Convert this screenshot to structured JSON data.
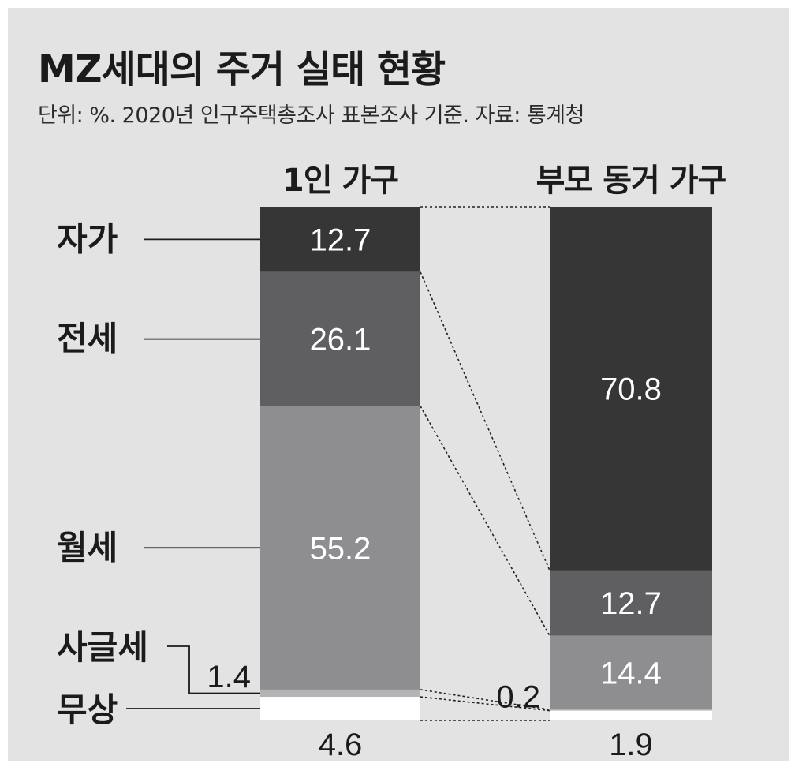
{
  "title": "MZ세대의 주거 실태 현황",
  "subtitle": "단위: %. 2020년 인구주택총조사 표본조사 기준. 자료: 통계청",
  "colors": {
    "panel": "#e3e3e3",
    "자가": "#363636",
    "전세": "#5f5f62",
    "월세": "#8e8e91",
    "사글세": "#b4b4b7",
    "무상": "#ffffff"
  },
  "chart_data": {
    "type": "bar",
    "stacked": true,
    "normalized": true,
    "categories": [
      "1인 가구",
      "부모 동거 가구"
    ],
    "series": [
      {
        "name": "자가",
        "values": [
          12.7,
          70.8
        ]
      },
      {
        "name": "전세",
        "values": [
          26.1,
          12.7
        ]
      },
      {
        "name": "월세",
        "values": [
          55.2,
          14.4
        ]
      },
      {
        "name": "사글세",
        "values": [
          1.4,
          0.2
        ]
      },
      {
        "name": "무상",
        "values": [
          4.6,
          1.9
        ]
      }
    ],
    "unit": "%",
    "ylim": [
      0,
      100
    ]
  }
}
